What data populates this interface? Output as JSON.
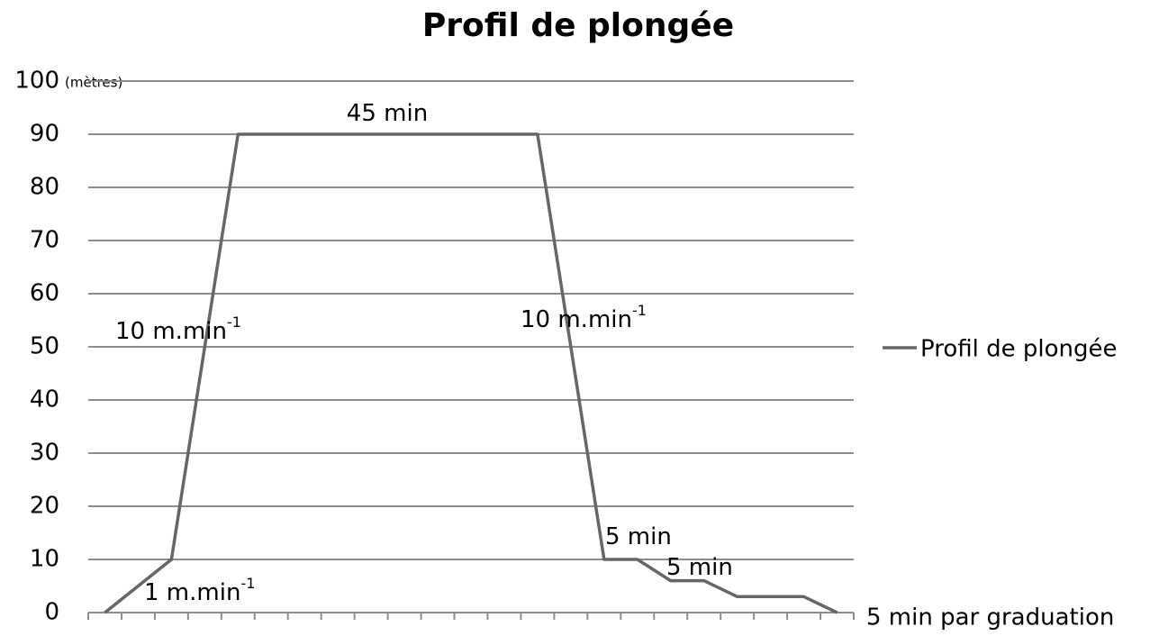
{
  "chart_data": {
    "type": "line",
    "title": "Profil de plongée",
    "y_unit_label": "(mètres)",
    "x_axis_label": "5 min par graduation",
    "categories": [
      null,
      null,
      null,
      null,
      null,
      null,
      null,
      null,
      null,
      null,
      null,
      null,
      null,
      null,
      null,
      null,
      null,
      null,
      null,
      null,
      null,
      null,
      null
    ],
    "series": [
      {
        "name": "Profil de plongée",
        "color": "#666666",
        "values": [
          0,
          5,
          10,
          50,
          90,
          90,
          90,
          90,
          90,
          90,
          90,
          90,
          90,
          90,
          50,
          10,
          10,
          6,
          6,
          3,
          3,
          3,
          0
        ]
      }
    ],
    "ylim": [
      0,
      100
    ],
    "yticks": [
      0,
      10,
      20,
      30,
      40,
      50,
      60,
      70,
      80,
      90,
      100
    ],
    "grid": true,
    "legend": "right",
    "annotations": [
      {
        "text": "45 min"
      },
      {
        "text": "10 m.min",
        "sup": "-1"
      },
      {
        "text": "10 m.min",
        "sup": "-1"
      },
      {
        "text": "1 m.min",
        "sup": "-1"
      },
      {
        "text": "5 min"
      },
      {
        "text": "5 min"
      }
    ]
  }
}
